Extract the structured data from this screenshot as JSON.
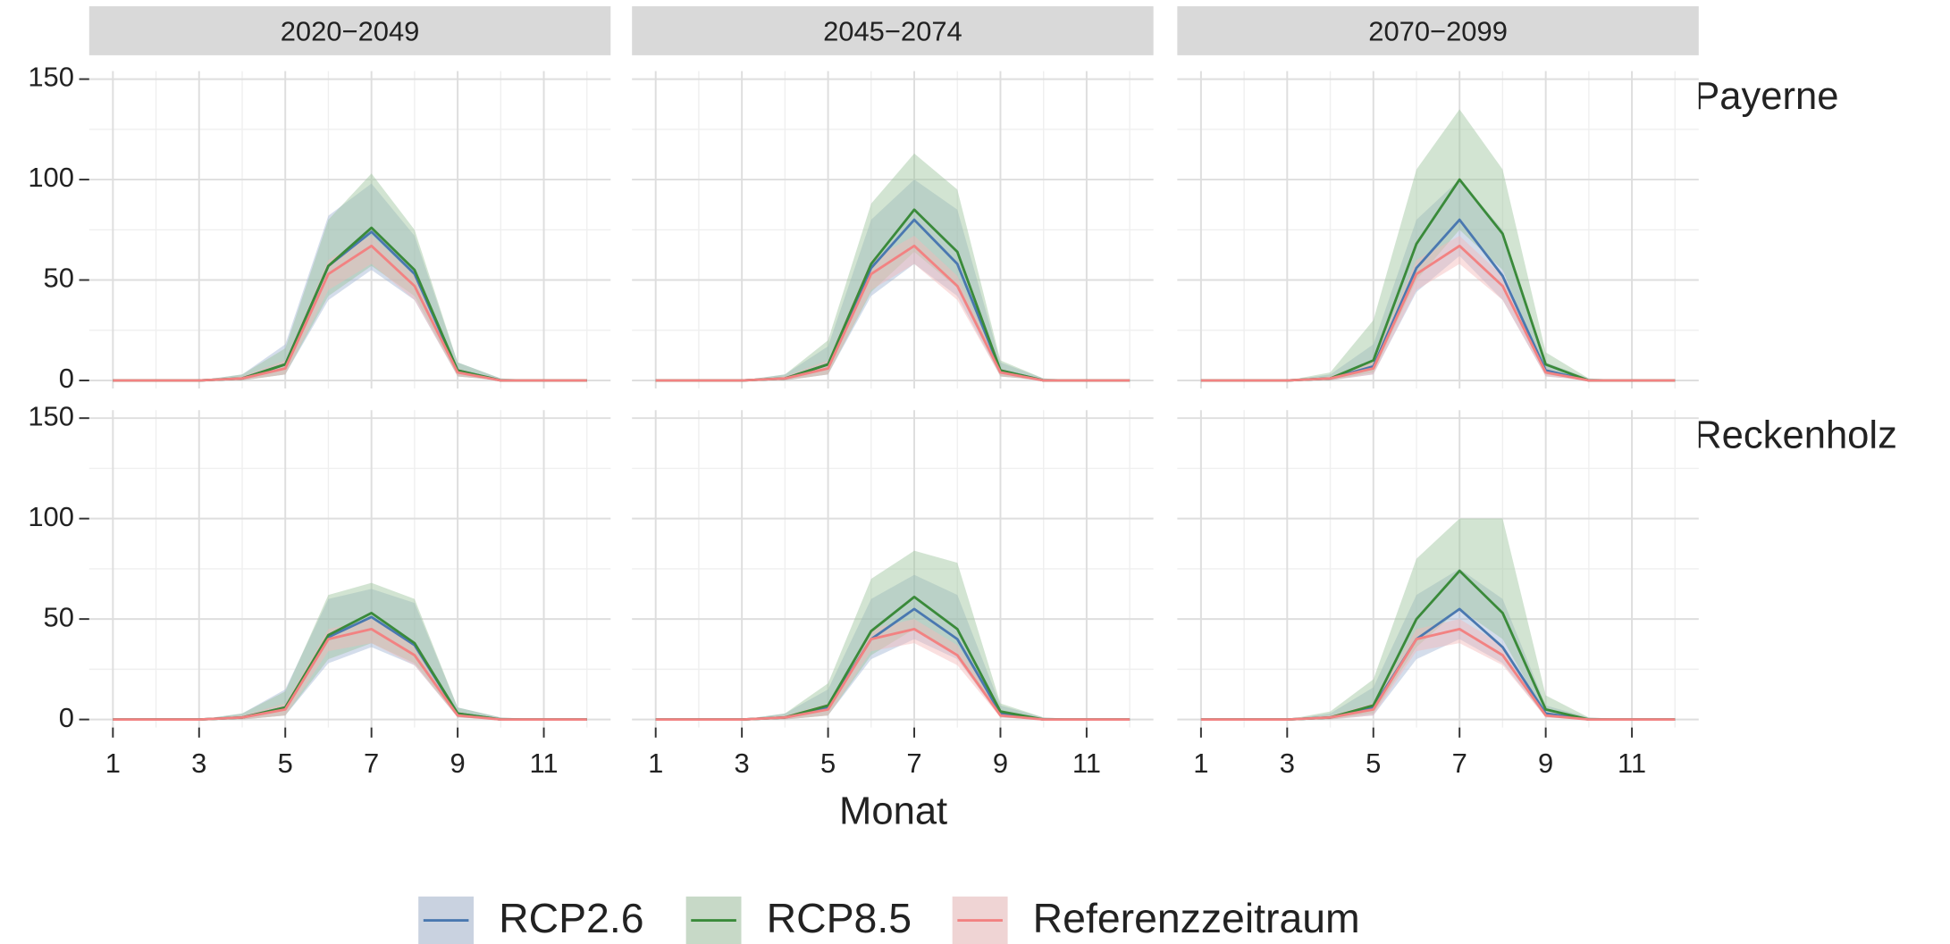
{
  "chart_data": {
    "type": "line",
    "x_label": "Monat",
    "x": [
      1,
      2,
      3,
      4,
      5,
      6,
      7,
      8,
      9,
      10,
      11,
      12
    ],
    "xlim": [
      0.45,
      12.55
    ],
    "xticks": [
      1,
      3,
      5,
      7,
      9,
      11
    ],
    "xgrid_minor": [
      2,
      4,
      6,
      8,
      10,
      12
    ],
    "ylim": [
      -4,
      154
    ],
    "yticks": [
      0,
      50,
      100,
      150
    ],
    "ygrid_minor": [
      25,
      75,
      125
    ],
    "grid": true,
    "legend": "bottom",
    "series": [
      {
        "name": "RCP2.6",
        "color": "#4a78b0",
        "band_color": "#9fb4d2"
      },
      {
        "name": "RCP8.5",
        "color": "#3a8a3a",
        "band_color": "#9cc49c"
      },
      {
        "name": "Referenzzeitraum",
        "color": "#f28282",
        "band_color": "#f5b8b8"
      }
    ],
    "columns": [
      "2020−2049",
      "2045−2074",
      "2070−2099"
    ],
    "rows": [
      {
        "label": "Payerne",
        "panels": [
          {
            "series": [
              {
                "values": [
                  0,
                  0,
                  0,
                  1,
                  8,
                  57,
                  74,
                  53,
                  5,
                  0,
                  0,
                  0
                ],
                "lower": [
                  0,
                  0,
                  0,
                  0,
                  3,
                  40,
                  55,
                  40,
                  2,
                  0,
                  0,
                  0
                ],
                "upper": [
                  0,
                  0,
                  0,
                  3,
                  18,
                  82,
                  98,
                  72,
                  9,
                  1,
                  0,
                  0
                ]
              },
              {
                "values": [
                  0,
                  0,
                  0,
                  1,
                  8,
                  57,
                  76,
                  55,
                  5,
                  0,
                  0,
                  0
                ],
                "lower": [
                  0,
                  0,
                  0,
                  0,
                  3,
                  42,
                  57,
                  42,
                  2,
                  0,
                  0,
                  0
                ],
                "upper": [
                  0,
                  0,
                  0,
                  3,
                  16,
                  80,
                  103,
                  75,
                  9,
                  1,
                  0,
                  0
                ]
              },
              {
                "values": [
                  0,
                  0,
                  0,
                  1,
                  6,
                  53,
                  67,
                  47,
                  4,
                  0,
                  0,
                  0
                ],
                "lower": [
                  0,
                  0,
                  0,
                  0,
                  3,
                  45,
                  58,
                  40,
                  2,
                  0,
                  0,
                  0
                ],
                "upper": [
                  0,
                  0,
                  0,
                  2,
                  10,
                  60,
                  72,
                  52,
                  6,
                  0,
                  0,
                  0
                ]
              }
            ]
          },
          {
            "series": [
              {
                "values": [
                  0,
                  0,
                  0,
                  1,
                  8,
                  56,
                  80,
                  58,
                  5,
                  0,
                  0,
                  0
                ],
                "lower": [
                  0,
                  0,
                  0,
                  0,
                  3,
                  42,
                  58,
                  42,
                  2,
                  0,
                  0,
                  0
                ],
                "upper": [
                  0,
                  0,
                  0,
                  3,
                  17,
                  80,
                  100,
                  85,
                  9,
                  1,
                  0,
                  0
                ]
              },
              {
                "values": [
                  0,
                  0,
                  0,
                  1,
                  8,
                  58,
                  85,
                  64,
                  5,
                  0,
                  0,
                  0
                ],
                "lower": [
                  0,
                  0,
                  0,
                  0,
                  3,
                  44,
                  64,
                  46,
                  2,
                  0,
                  0,
                  0
                ],
                "upper": [
                  0,
                  0,
                  0,
                  3,
                  20,
                  88,
                  113,
                  95,
                  10,
                  1,
                  0,
                  0
                ]
              },
              {
                "values": [
                  0,
                  0,
                  0,
                  1,
                  6,
                  53,
                  67,
                  47,
                  4,
                  0,
                  0,
                  0
                ],
                "lower": [
                  0,
                  0,
                  0,
                  0,
                  3,
                  45,
                  58,
                  40,
                  2,
                  0,
                  0,
                  0
                ],
                "upper": [
                  0,
                  0,
                  0,
                  2,
                  10,
                  60,
                  72,
                  52,
                  6,
                  0,
                  0,
                  0
                ]
              }
            ]
          },
          {
            "series": [
              {
                "values": [
                  0,
                  0,
                  0,
                  1,
                  7,
                  56,
                  80,
                  52,
                  5,
                  0,
                  0,
                  0
                ],
                "lower": [
                  0,
                  0,
                  0,
                  0,
                  3,
                  44,
                  62,
                  40,
                  2,
                  0,
                  0,
                  0
                ],
                "upper": [
                  0,
                  0,
                  0,
                  3,
                  18,
                  80,
                  100,
                  75,
                  9,
                  1,
                  0,
                  0
                ]
              },
              {
                "values": [
                  0,
                  0,
                  0,
                  1,
                  10,
                  68,
                  100,
                  73,
                  8,
                  0,
                  0,
                  0
                ],
                "lower": [
                  0,
                  0,
                  0,
                  0,
                  4,
                  50,
                  75,
                  55,
                  3,
                  0,
                  0,
                  0
                ],
                "upper": [
                  0,
                  0,
                  0,
                  4,
                  30,
                  105,
                  135,
                  105,
                  14,
                  1,
                  0,
                  0
                ]
              },
              {
                "values": [
                  0,
                  0,
                  0,
                  1,
                  6,
                  53,
                  67,
                  47,
                  4,
                  0,
                  0,
                  0
                ],
                "lower": [
                  0,
                  0,
                  0,
                  0,
                  3,
                  45,
                  58,
                  40,
                  2,
                  0,
                  0,
                  0
                ],
                "upper": [
                  0,
                  0,
                  0,
                  2,
                  10,
                  60,
                  72,
                  52,
                  6,
                  0,
                  0,
                  0
                ]
              }
            ]
          }
        ]
      },
      {
        "label": "Reckenholz",
        "panels": [
          {
            "series": [
              {
                "values": [
                  0,
                  0,
                  0,
                  1,
                  6,
                  41,
                  51,
                  37,
                  3,
                  0,
                  0,
                  0
                ],
                "lower": [
                  0,
                  0,
                  0,
                  0,
                  2,
                  28,
                  36,
                  27,
                  1,
                  0,
                  0,
                  0
                ],
                "upper": [
                  0,
                  0,
                  0,
                  3,
                  15,
                  60,
                  65,
                  58,
                  6,
                  1,
                  0,
                  0
                ]
              },
              {
                "values": [
                  0,
                  0,
                  0,
                  1,
                  6,
                  42,
                  53,
                  38,
                  3,
                  0,
                  0,
                  0
                ],
                "lower": [
                  0,
                  0,
                  0,
                  0,
                  2,
                  30,
                  38,
                  28,
                  1,
                  0,
                  0,
                  0
                ],
                "upper": [
                  0,
                  0,
                  0,
                  3,
                  14,
                  62,
                  68,
                  60,
                  6,
                  1,
                  0,
                  0
                ]
              },
              {
                "values": [
                  0,
                  0,
                  0,
                  1,
                  5,
                  40,
                  45,
                  32,
                  2,
                  0,
                  0,
                  0
                ],
                "lower": [
                  0,
                  0,
                  0,
                  0,
                  2,
                  34,
                  38,
                  27,
                  1,
                  0,
                  0,
                  0
                ],
                "upper": [
                  0,
                  0,
                  0,
                  2,
                  8,
                  45,
                  50,
                  37,
                  4,
                  0,
                  0,
                  0
                ]
              }
            ]
          },
          {
            "series": [
              {
                "values": [
                  0,
                  0,
                  0,
                  1,
                  6,
                  40,
                  55,
                  40,
                  3,
                  0,
                  0,
                  0
                ],
                "lower": [
                  0,
                  0,
                  0,
                  0,
                  2,
                  30,
                  40,
                  30,
                  1,
                  0,
                  0,
                  0
                ],
                "upper": [
                  0,
                  0,
                  0,
                  3,
                  15,
                  60,
                  72,
                  62,
                  7,
                  1,
                  0,
                  0
                ]
              },
              {
                "values": [
                  0,
                  0,
                  0,
                  1,
                  7,
                  44,
                  61,
                  45,
                  4,
                  0,
                  0,
                  0
                ],
                "lower": [
                  0,
                  0,
                  0,
                  0,
                  2,
                  32,
                  45,
                  33,
                  1,
                  0,
                  0,
                  0
                ],
                "upper": [
                  0,
                  0,
                  0,
                  3,
                  18,
                  70,
                  84,
                  78,
                  8,
                  1,
                  0,
                  0
                ]
              },
              {
                "values": [
                  0,
                  0,
                  0,
                  1,
                  5,
                  40,
                  45,
                  32,
                  2,
                  0,
                  0,
                  0
                ],
                "lower": [
                  0,
                  0,
                  0,
                  0,
                  2,
                  34,
                  38,
                  27,
                  1,
                  0,
                  0,
                  0
                ],
                "upper": [
                  0,
                  0,
                  0,
                  2,
                  8,
                  45,
                  50,
                  37,
                  4,
                  0,
                  0,
                  0
                ]
              }
            ]
          },
          {
            "series": [
              {
                "values": [
                  0,
                  0,
                  0,
                  1,
                  6,
                  40,
                  55,
                  36,
                  3,
                  0,
                  0,
                  0
                ],
                "lower": [
                  0,
                  0,
                  0,
                  0,
                  2,
                  30,
                  40,
                  28,
                  1,
                  0,
                  0,
                  0
                ],
                "upper": [
                  0,
                  0,
                  0,
                  3,
                  16,
                  62,
                  75,
                  60,
                  7,
                  1,
                  0,
                  0
                ]
              },
              {
                "values": [
                  0,
                  0,
                  0,
                  1,
                  7,
                  50,
                  74,
                  53,
                  5,
                  0,
                  0,
                  0
                ],
                "lower": [
                  0,
                  0,
                  0,
                  0,
                  3,
                  36,
                  55,
                  40,
                  2,
                  0,
                  0,
                  0
                ],
                "upper": [
                  0,
                  0,
                  0,
                  4,
                  20,
                  80,
                  100,
                  100,
                  12,
                  1,
                  0,
                  0
                ]
              },
              {
                "values": [
                  0,
                  0,
                  0,
                  1,
                  5,
                  40,
                  45,
                  32,
                  2,
                  0,
                  0,
                  0
                ],
                "lower": [
                  0,
                  0,
                  0,
                  0,
                  2,
                  34,
                  38,
                  27,
                  1,
                  0,
                  0,
                  0
                ],
                "upper": [
                  0,
                  0,
                  0,
                  2,
                  8,
                  45,
                  50,
                  37,
                  4,
                  0,
                  0,
                  0
                ]
              }
            ]
          }
        ]
      }
    ]
  }
}
